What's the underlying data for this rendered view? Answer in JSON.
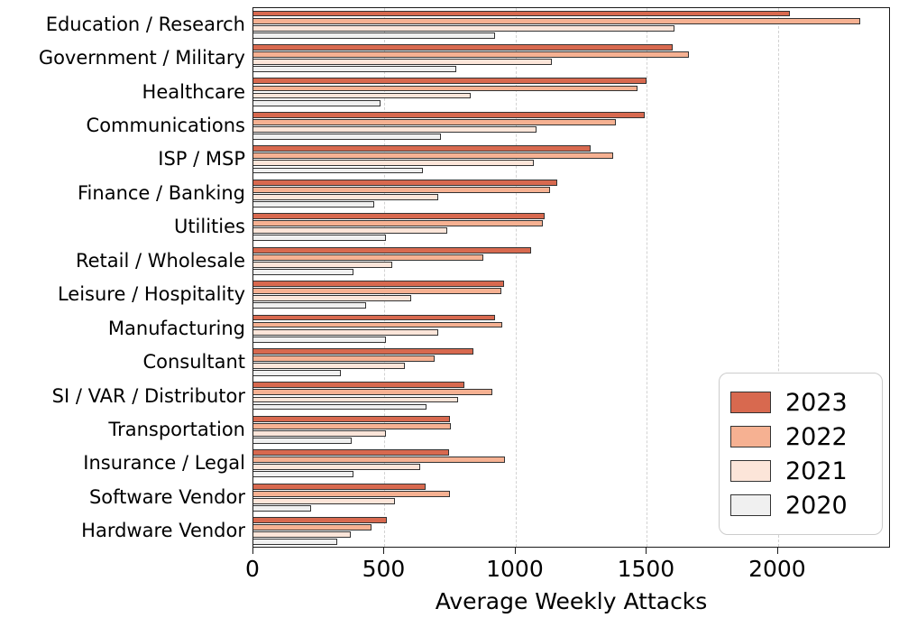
{
  "chart_data": {
    "type": "bar",
    "orientation": "horizontal",
    "title": "",
    "xlabel": "Average Weekly Attacks",
    "ylabel": "",
    "xlim": [
      0,
      2430
    ],
    "xticks": [
      0,
      500,
      1000,
      1500,
      2000
    ],
    "grid": "vertical dashed gridlines at xticks",
    "legend_position": "lower right",
    "bar_edge_color": "#333333",
    "categories": [
      "Education / Research",
      "Government / Military",
      "Healthcare",
      "Communications",
      "ISP / MSP",
      "Finance / Banking",
      "Utilities",
      "Retail / Wholesale",
      "Leisure / Hospitality",
      "Manufacturing",
      "Consultant",
      "SI / VAR / Distributor",
      "Transportation",
      "Insurance / Legal",
      "Software Vendor",
      "Hardware Vendor"
    ],
    "series": [
      {
        "name": "2023",
        "color": "#d8694f",
        "values": [
          2046,
          1598,
          1500,
          1493,
          1286,
          1160,
          1110,
          1060,
          957,
          920,
          840,
          805,
          750,
          745,
          655,
          510
        ]
      },
      {
        "name": "2022",
        "color": "#f6b192",
        "values": [
          2314,
          1661,
          1463,
          1380,
          1372,
          1131,
          1105,
          875,
          945,
          950,
          690,
          910,
          752,
          960,
          750,
          450
        ]
      },
      {
        "name": "2021",
        "color": "#fce5d9",
        "values": [
          1605,
          1136,
          830,
          1078,
          1070,
          705,
          740,
          530,
          600,
          705,
          577,
          780,
          505,
          637,
          540,
          370
        ]
      },
      {
        "name": "2020",
        "color": "#f0f0f0",
        "values": [
          920,
          775,
          485,
          715,
          645,
          460,
          505,
          380,
          430,
          505,
          335,
          660,
          375,
          380,
          220,
          320
        ]
      }
    ]
  }
}
